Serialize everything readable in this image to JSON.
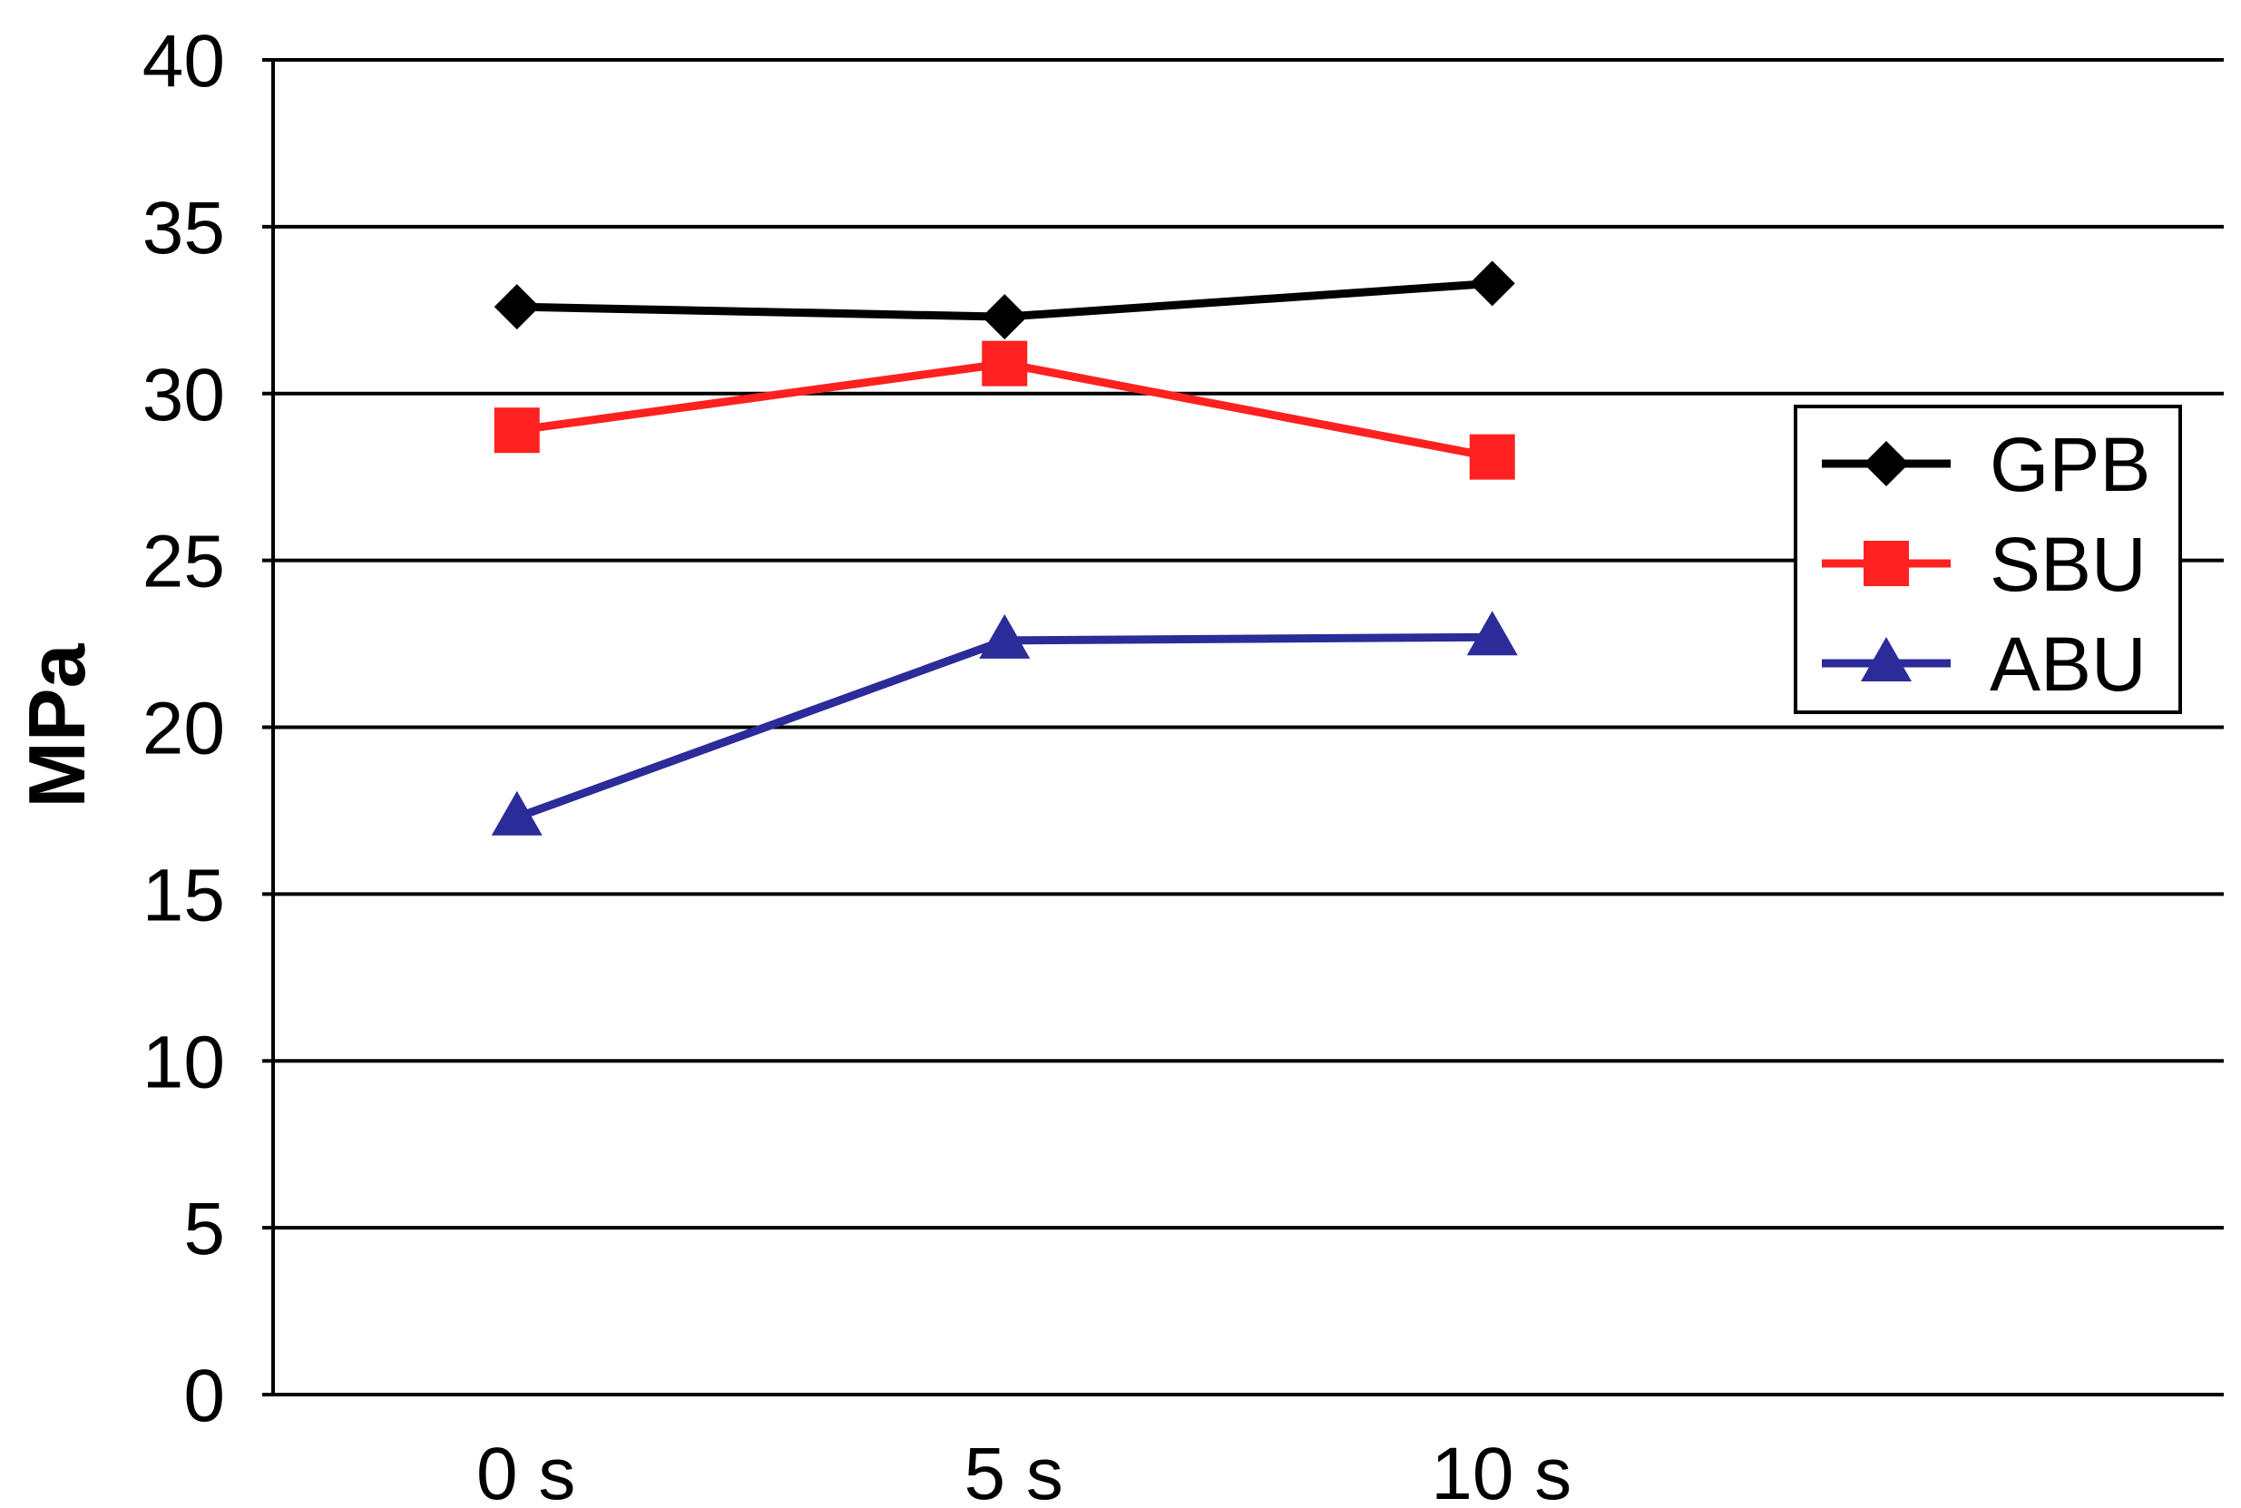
{
  "chart_data": {
    "type": "line",
    "ylabel": "MPa",
    "categories": [
      "0 s",
      "5 s",
      "10 s"
    ],
    "ylim": [
      0,
      40
    ],
    "yticks": [
      0,
      5,
      10,
      15,
      20,
      25,
      30,
      35,
      40
    ],
    "grid": true,
    "legend_position": "right",
    "series": [
      {
        "name": "GPB",
        "color": "#000000",
        "marker": "diamond",
        "values": [
          32.6,
          32.3,
          33.3
        ]
      },
      {
        "name": "SBU",
        "color": "#FF2020",
        "marker": "square",
        "values": [
          28.9,
          30.9,
          28.1
        ]
      },
      {
        "name": "ABU",
        "color": "#2B2B99",
        "marker": "triangle",
        "values": [
          17.3,
          22.6,
          22.7
        ]
      }
    ]
  }
}
